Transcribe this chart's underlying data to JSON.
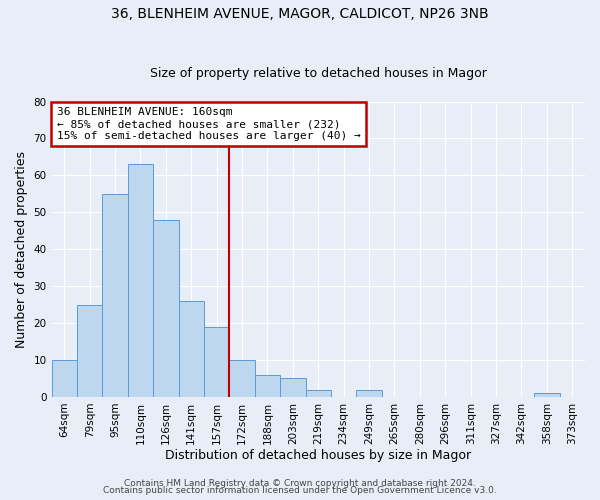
{
  "title": "36, BLENHEIM AVENUE, MAGOR, CALDICOT, NP26 3NB",
  "subtitle": "Size of property relative to detached houses in Magor",
  "xlabel": "Distribution of detached houses by size in Magor",
  "ylabel": "Number of detached properties",
  "bar_labels": [
    "64sqm",
    "79sqm",
    "95sqm",
    "110sqm",
    "126sqm",
    "141sqm",
    "157sqm",
    "172sqm",
    "188sqm",
    "203sqm",
    "219sqm",
    "234sqm",
    "249sqm",
    "265sqm",
    "280sqm",
    "296sqm",
    "311sqm",
    "327sqm",
    "342sqm",
    "358sqm",
    "373sqm"
  ],
  "bar_values": [
    10,
    25,
    55,
    63,
    48,
    26,
    19,
    10,
    6,
    5,
    2,
    0,
    2,
    0,
    0,
    0,
    0,
    0,
    0,
    1,
    0
  ],
  "bar_color": "#bdd7ee",
  "bar_edge_color": "#5b9bd5",
  "vline_x_idx": 6,
  "vline_color": "#c00000",
  "ylim": [
    0,
    80
  ],
  "yticks": [
    0,
    10,
    20,
    30,
    40,
    50,
    60,
    70,
    80
  ],
  "annotation_title": "36 BLENHEIM AVENUE: 160sqm",
  "annotation_line1": "← 85% of detached houses are smaller (232)",
  "annotation_line2": "15% of semi-detached houses are larger (40) →",
  "annotation_box_color": "#c00000",
  "footer_line1": "Contains HM Land Registry data © Crown copyright and database right 2024.",
  "footer_line2": "Contains public sector information licensed under the Open Government Licence v3.0.",
  "background_color": "#e8eef7",
  "grid_color": "#ffffff",
  "title_fontsize": 10,
  "subtitle_fontsize": 9,
  "axis_label_fontsize": 9,
  "tick_fontsize": 7.5,
  "annotation_fontsize": 8,
  "footer_fontsize": 6.5
}
